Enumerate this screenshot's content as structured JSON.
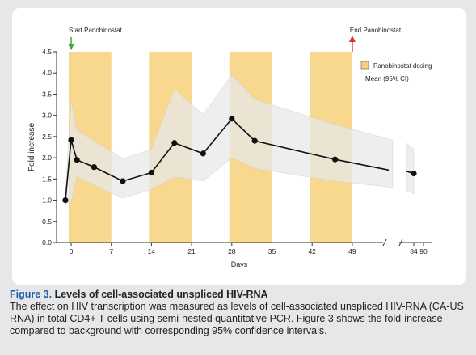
{
  "colors": {
    "dosing_band": "#f7d07a",
    "ci_band": "#e9e9e9",
    "line": "#111111",
    "start_arrow": "#3aaa35",
    "end_arrow": "#d9342b",
    "caption_label": "#1a5ca8"
  },
  "chart_data": {
    "type": "line",
    "xlabel": "Days",
    "ylabel": "Fold increase",
    "ylim": [
      0,
      4.5
    ],
    "y_ticks": [
      "0.0",
      "0.5",
      "1.0",
      "1.5",
      "2.0",
      "2.5",
      "3.0",
      "3.5",
      "4.0",
      "4.5"
    ],
    "x_ticks": [
      "0",
      "7",
      "14",
      "21",
      "28",
      "35",
      "42",
      "49",
      "84",
      "90"
    ],
    "x_axis_break": {
      "after_day": 49,
      "resumes_at_day": 84
    },
    "grid": false,
    "legend_position": "right",
    "legend": [
      {
        "label": "Panobinostat dosing",
        "kind": "swatch"
      },
      {
        "label": "Mean (95% CI)",
        "kind": "text"
      }
    ],
    "annotations": [
      {
        "text": "Start Panobinostat",
        "day": 0,
        "arrow": "down",
        "color": "green"
      },
      {
        "text": "End Panobinostat",
        "day": 49,
        "arrow": "up",
        "color": "red"
      }
    ],
    "dosing_periods": [
      [
        0,
        7
      ],
      [
        14,
        21
      ],
      [
        28,
        35
      ],
      [
        42,
        49
      ]
    ],
    "series": [
      {
        "x": [
          -1,
          0,
          1,
          4,
          9,
          14,
          18,
          23,
          28,
          32,
          46,
          84
        ],
        "mean": [
          1.0,
          2.42,
          1.95,
          1.78,
          1.45,
          1.65,
          2.35,
          2.1,
          2.92,
          2.4,
          1.96,
          1.63
        ],
        "ci_lower": [
          0.9,
          0.95,
          1.55,
          1.35,
          1.05,
          1.25,
          1.55,
          1.45,
          2.0,
          1.75,
          1.45,
          1.15
        ],
        "ci_upper": [
          1.15,
          3.35,
          2.65,
          2.4,
          1.98,
          2.2,
          3.62,
          3.02,
          3.95,
          3.38,
          2.78,
          2.2
        ]
      }
    ]
  },
  "caption": {
    "label": "Figure 3.",
    "title": " Levels of cell-associated unspliced HIV-RNA",
    "body": "The effect on HIV transcription was measured as levels of cell-associated unspliced HIV-RNA (CA-US RNA) in total CD4+ T cells using semi-nested quantitative PCR. Figure 3 shows the fold-increase compared to background with corresponding 95% confidence intervals."
  }
}
